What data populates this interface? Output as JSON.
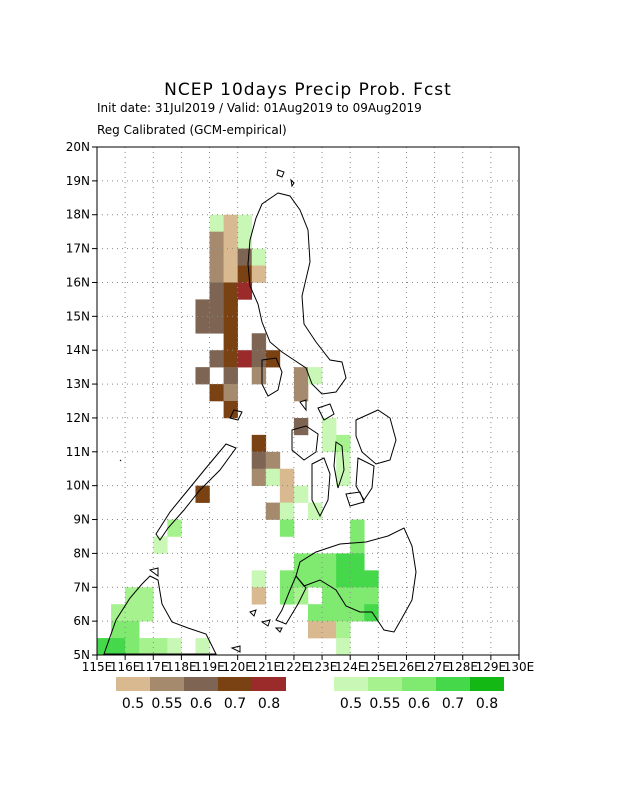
{
  "title": "NCEP 10days Precip Prob. Fcst",
  "subtitle_dates": "Init date: 31Jul2019 / Valid: 01Aug2019 to 09Aug2019",
  "subtitle_method": "Reg Calibrated (GCM-empirical)",
  "map": {
    "lon_range": [
      115,
      130
    ],
    "lat_range": [
      5,
      20
    ],
    "y_ticks": [
      "5N",
      "6N",
      "7N",
      "8N",
      "9N",
      "10N",
      "11N",
      "12N",
      "13N",
      "14N",
      "15N",
      "16N",
      "17N",
      "18N",
      "19N",
      "20N"
    ],
    "x_ticks": [
      "115E",
      "116E",
      "117E",
      "118E",
      "119E",
      "120E",
      "121E",
      "122E",
      "123E",
      "124E",
      "125E",
      "126E",
      "127E",
      "128E",
      "129E",
      "130E"
    ],
    "grid": "dotted",
    "cell_size_deg": 0.5
  },
  "colors": {
    "dry": [
      "#d9b98f",
      "#a68a6e",
      "#7e6452",
      "#7a4213",
      "#9b2b2b"
    ],
    "wet": [
      "#c9f7b6",
      "#a6f28f",
      "#7fea6f",
      "#45d84a",
      "#14b814"
    ]
  },
  "legend": {
    "dry_labels": [
      "0.5",
      "0.55",
      "0.6",
      "0.7",
      "0.8"
    ],
    "wet_labels": [
      "0.5",
      "0.55",
      "0.6",
      "0.7",
      "0.8"
    ]
  },
  "cells": [
    {
      "lon": 119.0,
      "lat": 17.5,
      "c": "w0"
    },
    {
      "lon": 119.5,
      "lat": 17.5,
      "c": "d0"
    },
    {
      "lon": 120.0,
      "lat": 17.5,
      "c": "w0"
    },
    {
      "lon": 119.0,
      "lat": 17.0,
      "c": "d1"
    },
    {
      "lon": 119.5,
      "lat": 17.0,
      "c": "d0"
    },
    {
      "lon": 120.0,
      "lat": 17.0,
      "c": "w0"
    },
    {
      "lon": 119.0,
      "lat": 16.5,
      "c": "d1"
    },
    {
      "lon": 119.5,
      "lat": 16.5,
      "c": "d0"
    },
    {
      "lon": 120.0,
      "lat": 16.5,
      "c": "d2"
    },
    {
      "lon": 120.5,
      "lat": 16.5,
      "c": "w0"
    },
    {
      "lon": 119.0,
      "lat": 16.0,
      "c": "d1"
    },
    {
      "lon": 119.5,
      "lat": 16.0,
      "c": "d0"
    },
    {
      "lon": 120.0,
      "lat": 16.0,
      "c": "d3"
    },
    {
      "lon": 120.5,
      "lat": 16.0,
      "c": "d0"
    },
    {
      "lon": 119.0,
      "lat": 15.5,
      "c": "d2"
    },
    {
      "lon": 119.5,
      "lat": 15.5,
      "c": "d3"
    },
    {
      "lon": 120.0,
      "lat": 15.5,
      "c": "d4"
    },
    {
      "lon": 118.5,
      "lat": 15.0,
      "c": "d2"
    },
    {
      "lon": 119.0,
      "lat": 15.0,
      "c": "d2"
    },
    {
      "lon": 119.5,
      "lat": 15.0,
      "c": "d3"
    },
    {
      "lon": 118.5,
      "lat": 14.5,
      "c": "d2"
    },
    {
      "lon": 119.0,
      "lat": 14.5,
      "c": "d2"
    },
    {
      "lon": 119.5,
      "lat": 14.5,
      "c": "d3"
    },
    {
      "lon": 119.5,
      "lat": 14.0,
      "c": "d3"
    },
    {
      "lon": 120.5,
      "lat": 14.0,
      "c": "d2"
    },
    {
      "lon": 119.0,
      "lat": 13.5,
      "c": "d2"
    },
    {
      "lon": 119.5,
      "lat": 13.5,
      "c": "d3"
    },
    {
      "lon": 120.0,
      "lat": 13.5,
      "c": "d4"
    },
    {
      "lon": 120.5,
      "lat": 13.5,
      "c": "d2"
    },
    {
      "lon": 121.0,
      "lat": 13.5,
      "c": "d3"
    },
    {
      "lon": 118.5,
      "lat": 13.0,
      "c": "d2"
    },
    {
      "lon": 119.5,
      "lat": 13.0,
      "c": "d2"
    },
    {
      "lon": 120.5,
      "lat": 13.0,
      "c": "d1"
    },
    {
      "lon": 122.0,
      "lat": 13.0,
      "c": "d1"
    },
    {
      "lon": 122.5,
      "lat": 13.0,
      "c": "w0"
    },
    {
      "lon": 119.0,
      "lat": 12.5,
      "c": "d3"
    },
    {
      "lon": 119.5,
      "lat": 12.5,
      "c": "d1"
    },
    {
      "lon": 122.0,
      "lat": 12.5,
      "c": "d1"
    },
    {
      "lon": 119.5,
      "lat": 12.0,
      "c": "d3"
    },
    {
      "lon": 122.0,
      "lat": 11.5,
      "c": "d2"
    },
    {
      "lon": 123.0,
      "lat": 11.5,
      "c": "w0"
    },
    {
      "lon": 120.5,
      "lat": 11.0,
      "c": "d3"
    },
    {
      "lon": 123.0,
      "lat": 11.0,
      "c": "w0"
    },
    {
      "lon": 123.5,
      "lat": 11.0,
      "c": "w1"
    },
    {
      "lon": 120.5,
      "lat": 10.5,
      "c": "d2"
    },
    {
      "lon": 121.0,
      "lat": 10.5,
      "c": "d1"
    },
    {
      "lon": 123.5,
      "lat": 10.5,
      "c": "w0"
    },
    {
      "lon": 120.5,
      "lat": 10.0,
      "c": "d1"
    },
    {
      "lon": 121.0,
      "lat": 10.0,
      "c": "w0"
    },
    {
      "lon": 121.5,
      "lat": 10.0,
      "c": "d0"
    },
    {
      "lon": 123.5,
      "lat": 10.0,
      "c": "w0"
    },
    {
      "lon": 118.5,
      "lat": 9.5,
      "c": "d3"
    },
    {
      "lon": 121.5,
      "lat": 9.5,
      "c": "d0"
    },
    {
      "lon": 122.0,
      "lat": 9.5,
      "c": "w0"
    },
    {
      "lon": 121.0,
      "lat": 9.0,
      "c": "d1"
    },
    {
      "lon": 121.5,
      "lat": 9.0,
      "c": "w0"
    },
    {
      "lon": 122.5,
      "lat": 9.0,
      "c": "w0"
    },
    {
      "lon": 117.5,
      "lat": 8.5,
      "c": "w1"
    },
    {
      "lon": 121.5,
      "lat": 8.5,
      "c": "w2"
    },
    {
      "lon": 124.0,
      "lat": 8.5,
      "c": "w2"
    },
    {
      "lon": 117.0,
      "lat": 8.0,
      "c": "w0"
    },
    {
      "lon": 124.0,
      "lat": 8.0,
      "c": "w2"
    },
    {
      "lon": 122.0,
      "lat": 7.5,
      "c": "w2"
    },
    {
      "lon": 122.5,
      "lat": 7.5,
      "c": "w2"
    },
    {
      "lon": 123.0,
      "lat": 7.5,
      "c": "w2"
    },
    {
      "lon": 123.5,
      "lat": 7.5,
      "c": "w3"
    },
    {
      "lon": 124.0,
      "lat": 7.5,
      "c": "w3"
    },
    {
      "lon": 120.5,
      "lat": 7.0,
      "c": "w0"
    },
    {
      "lon": 121.5,
      "lat": 7.0,
      "c": "w2"
    },
    {
      "lon": 122.0,
      "lat": 7.0,
      "c": "w2"
    },
    {
      "lon": 122.5,
      "lat": 7.0,
      "c": "w2"
    },
    {
      "lon": 123.0,
      "lat": 7.0,
      "c": "w2"
    },
    {
      "lon": 123.5,
      "lat": 7.0,
      "c": "w3"
    },
    {
      "lon": 124.0,
      "lat": 7.0,
      "c": "w3"
    },
    {
      "lon": 124.5,
      "lat": 7.0,
      "c": "w3"
    },
    {
      "lon": 120.5,
      "lat": 6.5,
      "c": "d0"
    },
    {
      "lon": 121.5,
      "lat": 6.5,
      "c": "w2"
    },
    {
      "lon": 122.0,
      "lat": 6.5,
      "c": "w1"
    },
    {
      "lon": 123.0,
      "lat": 6.5,
      "c": "w2"
    },
    {
      "lon": 123.5,
      "lat": 6.5,
      "c": "w2"
    },
    {
      "lon": 124.0,
      "lat": 6.5,
      "c": "w2"
    },
    {
      "lon": 124.5,
      "lat": 6.5,
      "c": "w2"
    },
    {
      "lon": 116.0,
      "lat": 6.5,
      "c": "w1"
    },
    {
      "lon": 116.5,
      "lat": 6.5,
      "c": "w1"
    },
    {
      "lon": 122.5,
      "lat": 6.0,
      "c": "w2"
    },
    {
      "lon": 123.0,
      "lat": 6.0,
      "c": "w2"
    },
    {
      "lon": 123.5,
      "lat": 6.0,
      "c": "w2"
    },
    {
      "lon": 124.0,
      "lat": 6.0,
      "c": "w2"
    },
    {
      "lon": 124.5,
      "lat": 6.0,
      "c": "w3"
    },
    {
      "lon": 115.5,
      "lat": 6.0,
      "c": "w1"
    },
    {
      "lon": 116.0,
      "lat": 6.0,
      "c": "w1"
    },
    {
      "lon": 116.5,
      "lat": 6.0,
      "c": "w1"
    },
    {
      "lon": 115.5,
      "lat": 5.5,
      "c": "w2"
    },
    {
      "lon": 116.0,
      "lat": 5.5,
      "c": "w2"
    },
    {
      "lon": 122.5,
      "lat": 5.5,
      "c": "d0"
    },
    {
      "lon": 123.0,
      "lat": 5.5,
      "c": "d0"
    },
    {
      "lon": 123.5,
      "lat": 5.5,
      "c": "w1"
    },
    {
      "lon": 115.0,
      "lat": 5.0,
      "c": "w3"
    },
    {
      "lon": 115.5,
      "lat": 5.0,
      "c": "w3"
    },
    {
      "lon": 116.0,
      "lat": 5.0,
      "c": "w2"
    },
    {
      "lon": 116.5,
      "lat": 5.0,
      "c": "w1"
    },
    {
      "lon": 117.0,
      "lat": 5.0,
      "c": "w1"
    },
    {
      "lon": 117.5,
      "lat": 5.0,
      "c": "w0"
    },
    {
      "lon": 118.5,
      "lat": 5.0,
      "c": "w0"
    },
    {
      "lon": 123.5,
      "lat": 5.0,
      "c": "w0"
    }
  ]
}
